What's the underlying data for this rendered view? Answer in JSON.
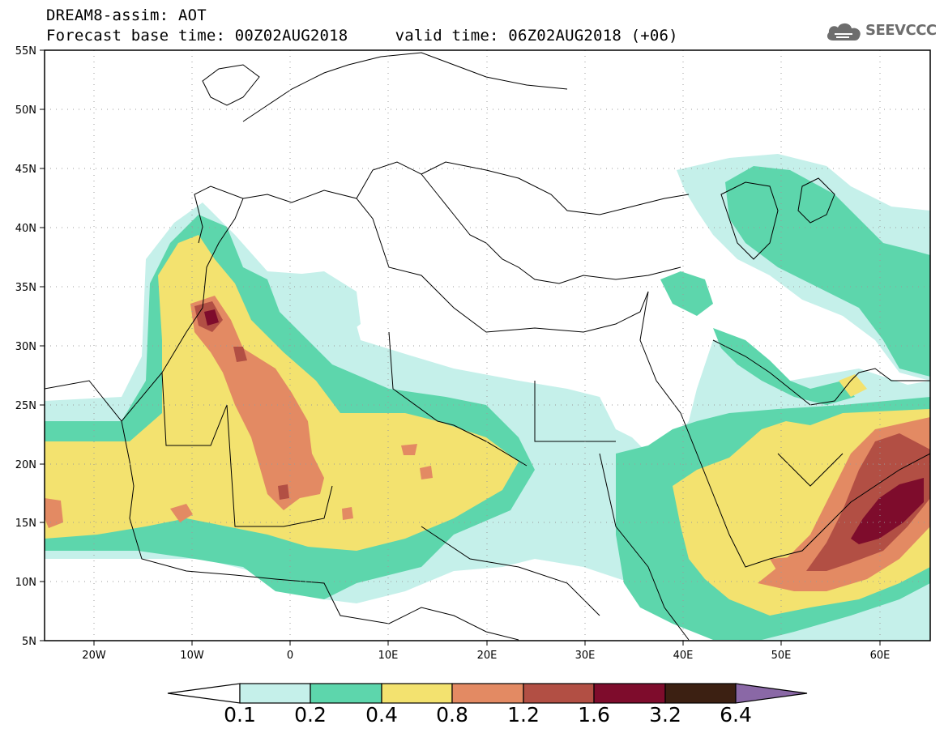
{
  "header": {
    "line1": "DREAM8-assim: AOT",
    "line2": "Forecast base time: 00Z02AUG2018     valid time: 06Z02AUG2018 (+06)"
  },
  "logo": {
    "text": "SEEVCCC",
    "icon": "cloud-icon",
    "color": "#6d6d6d"
  },
  "map": {
    "lat_ticks": [
      "55N",
      "50N",
      "45N",
      "40N",
      "35N",
      "30N",
      "25N",
      "20N",
      "15N",
      "10N",
      "5N"
    ],
    "lon_ticks": [
      "20W",
      "10W",
      "0",
      "10E",
      "20E",
      "30E",
      "40E",
      "50E",
      "60E"
    ],
    "lon_range": [
      -25,
      65
    ],
    "lat_range": [
      5,
      55
    ],
    "grid": true
  },
  "colorbar": {
    "labels": [
      "0.1",
      "0.2",
      "0.4",
      "0.8",
      "1.2",
      "1.6",
      "3.2",
      "6.4"
    ],
    "colors": [
      "#ffffff",
      "#c5f0ea",
      "#5dd6ac",
      "#f3e26f",
      "#e38a63",
      "#b24f44",
      "#7e0c2c",
      "#3c2012",
      "#8a68a6"
    ]
  }
}
